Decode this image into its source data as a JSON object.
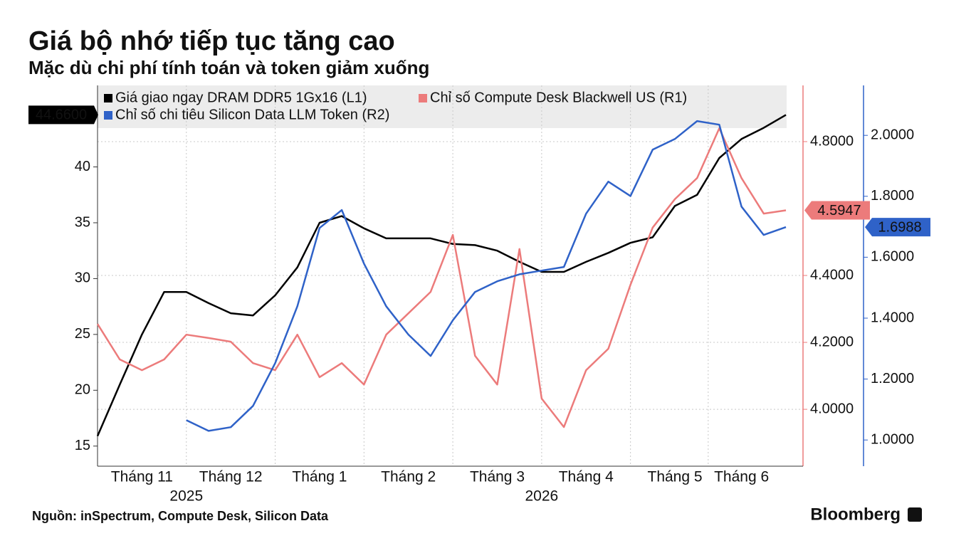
{
  "chart_data": {
    "type": "line",
    "title": "Giá bộ nhớ tiếp tục tăng cao",
    "subtitle": "Mặc dù chi phí tính toán và token giảm xuống",
    "source": "Nguồn: inSpectrum, Compute Desk, Silicon Data",
    "brand": "Bloomberg",
    "x": [
      null,
      null,
      "Tháng 11",
      null,
      null,
      null,
      "Tháng 12",
      null,
      null,
      null,
      "Tháng 1",
      null,
      null,
      null,
      "Tháng 2",
      null,
      null,
      null,
      "Tháng 3",
      null,
      null,
      null,
      "Tháng 4",
      null,
      null,
      null,
      "Tháng 5",
      null,
      null,
      "Tháng 6",
      null,
      null
    ],
    "x2": [
      null,
      null,
      null,
      null,
      "2025",
      null,
      null,
      null,
      null,
      null,
      null,
      null,
      null,
      null,
      null,
      null,
      null,
      null,
      null,
      null,
      "2026",
      null,
      null,
      null,
      null,
      null,
      null,
      null,
      null,
      null,
      null,
      null
    ],
    "ylim": [
      13.2,
      47.3
    ],
    "yticks": [
      15,
      20,
      25,
      30,
      35,
      40
    ],
    "y2lim": [
      3.83,
      4.968
    ],
    "y2ticks": [
      {
        "value": 4.0,
        "label": "4.0000"
      },
      {
        "value": 4.2,
        "label": "4.2000"
      },
      {
        "value": 4.4,
        "label": "4.4000"
      },
      {
        "value": 4.8,
        "label": "4.8000"
      }
    ],
    "y3lim": [
      0.914,
      2.164
    ],
    "y3ticks": [
      {
        "value": 1.0,
        "label": "1.0000"
      },
      {
        "value": 1.2,
        "label": "1.2000"
      },
      {
        "value": 1.4,
        "label": "1.4000"
      },
      {
        "value": 1.6,
        "label": "1.6000"
      },
      {
        "value": 1.8,
        "label": "1.8000"
      },
      {
        "value": 2.0,
        "label": "2.0000"
      }
    ],
    "grid": true,
    "series": [
      {
        "name": "Giá giao ngay DRAM DDR5 1Gx16 (L1)",
        "color": "#000000",
        "axis": "y",
        "values": [
          15.9,
          20.5,
          25.0,
          28.8,
          28.8,
          27.8,
          26.9,
          26.7,
          28.5,
          31.0,
          35.0,
          35.6,
          34.5,
          33.6,
          33.6,
          33.6,
          33.1,
          33.0,
          32.5,
          31.5,
          30.6,
          30.6,
          31.5,
          32.3,
          33.2,
          33.7,
          36.5,
          37.5,
          40.8,
          42.5,
          43.5,
          44.66
        ],
        "value_labels": [
          null,
          null,
          null,
          null,
          null,
          null,
          null,
          null,
          null,
          null,
          null,
          null,
          null,
          null,
          null,
          null,
          null,
          null,
          null,
          null,
          null,
          null,
          null,
          null,
          null,
          null,
          null,
          null,
          null,
          null,
          null,
          "44.6600"
        ]
      },
      {
        "name": "Chỉ số Compute Desk Blackwell US (R1)",
        "color": "#ec7b7b",
        "axis": "y2",
        "values": [
          4.255,
          4.149,
          4.117,
          4.149,
          4.223,
          4.213,
          4.202,
          4.138,
          4.117,
          4.223,
          4.096,
          4.138,
          4.074,
          4.223,
          4.287,
          4.351,
          4.521,
          4.16,
          4.074,
          4.479,
          4.032,
          3.947,
          4.117,
          4.181,
          4.372,
          4.543,
          4.628,
          4.691,
          4.84,
          4.691,
          4.585,
          4.5947
        ],
        "value_labels": [
          null,
          null,
          null,
          null,
          null,
          null,
          null,
          null,
          null,
          null,
          null,
          null,
          null,
          null,
          null,
          null,
          null,
          null,
          null,
          null,
          null,
          null,
          null,
          null,
          null,
          null,
          null,
          null,
          null,
          null,
          null,
          "4.5947"
        ]
      },
      {
        "name": "Chỉ số chi tiêu Silicon Data LLM Token (R2)",
        "color": "#2f62c8",
        "axis": "y3",
        "values": [
          null,
          null,
          null,
          null,
          1.065,
          1.03,
          1.042,
          1.112,
          1.252,
          1.439,
          1.696,
          1.755,
          1.579,
          1.439,
          1.346,
          1.276,
          1.393,
          1.486,
          1.521,
          1.544,
          1.556,
          1.568,
          1.743,
          1.848,
          1.801,
          1.953,
          1.988,
          2.047,
          2.035,
          1.766,
          1.673,
          1.6988
        ],
        "value_labels": [
          null,
          null,
          null,
          null,
          null,
          null,
          null,
          null,
          null,
          null,
          null,
          null,
          null,
          null,
          null,
          null,
          null,
          null,
          null,
          null,
          null,
          null,
          null,
          null,
          null,
          null,
          null,
          null,
          null,
          null,
          null,
          "1.6988"
        ]
      }
    ]
  }
}
